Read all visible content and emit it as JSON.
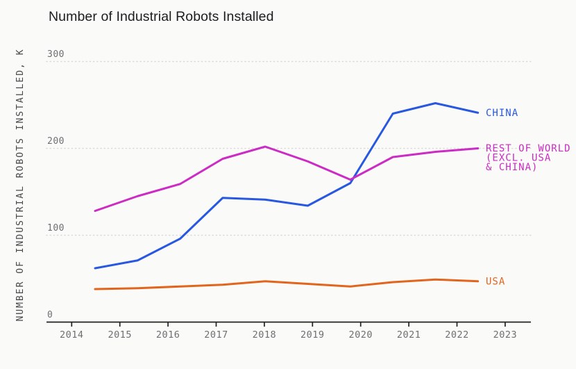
{
  "chart_data": {
    "type": "line",
    "title": "Number of Industrial Robots Installed",
    "ylabel": "NUMBER OF INDUSTRIAL ROBOTS INSTALLED, K",
    "xlabel": "",
    "categories": [
      "2014",
      "2015",
      "2016",
      "2017",
      "2018",
      "2019",
      "2020",
      "2021",
      "2022",
      "2023"
    ],
    "y_ticks": [
      "0",
      "100",
      "200",
      "300"
    ],
    "ylim": [
      0,
      320
    ],
    "grid": "horizontal-dotted",
    "legend_position": "right-end-of-line",
    "series": [
      {
        "name": "CHINA",
        "color": "#2858e0",
        "label_lines": [
          "CHINA"
        ],
        "values": [
          62,
          71,
          96,
          143,
          141,
          134,
          160,
          240,
          252,
          241
        ]
      },
      {
        "name": "REST OF WORLD (EXCL. USA & CHINA)",
        "color": "#cc2bc4",
        "label_lines": [
          "REST OF WORLD",
          "(EXCL. USA",
          "& CHINA)"
        ],
        "values": [
          128,
          145,
          159,
          188,
          202,
          185,
          164,
          190,
          196,
          200
        ]
      },
      {
        "name": "USA",
        "color": "#e2651d",
        "label_lines": [
          "USA"
        ],
        "values": [
          38,
          39,
          41,
          43,
          47,
          44,
          41,
          46,
          49,
          47
        ]
      }
    ],
    "colors": {
      "background": "#fafaf8",
      "title_text": "#1d1d1f",
      "tick_text": "#6f6f73",
      "axis_line": "#212121",
      "gridline": "#d9d9d9",
      "y_axis_title_text": "#48484a"
    }
  }
}
